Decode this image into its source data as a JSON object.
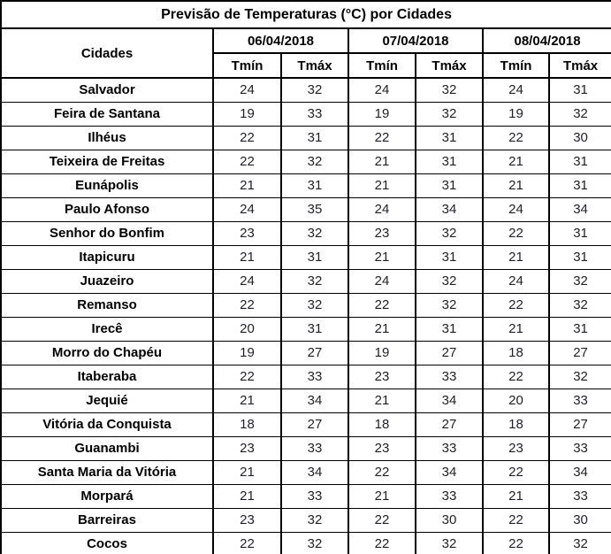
{
  "colors": {
    "border": "#000000",
    "header_text": "#000000",
    "value_text": "#1f1f28",
    "background": "#ffffff"
  },
  "chart_data": {
    "type": "table",
    "title": "Previsão de Temperaturas (°C) por Cidades",
    "row_header": "Cidades",
    "column_groups": [
      "06/04/2018",
      "07/04/2018",
      "08/04/2018"
    ],
    "sub_columns": [
      "Tmín",
      "Tmáx"
    ],
    "rows": [
      {
        "city": "Salvador",
        "temps": [
          24,
          32,
          24,
          32,
          24,
          31
        ]
      },
      {
        "city": "Feira de Santana",
        "temps": [
          19,
          33,
          19,
          32,
          19,
          32
        ]
      },
      {
        "city": "Ilhéus",
        "temps": [
          22,
          31,
          22,
          31,
          22,
          30
        ]
      },
      {
        "city": "Teixeira de Freitas",
        "temps": [
          22,
          32,
          21,
          31,
          21,
          31
        ]
      },
      {
        "city": "Eunápolis",
        "temps": [
          21,
          31,
          21,
          31,
          21,
          31
        ]
      },
      {
        "city": "Paulo Afonso",
        "temps": [
          24,
          35,
          24,
          34,
          24,
          34
        ]
      },
      {
        "city": "Senhor do Bonfim",
        "temps": [
          23,
          32,
          23,
          32,
          22,
          31
        ]
      },
      {
        "city": "Itapicuru",
        "temps": [
          21,
          31,
          21,
          31,
          21,
          31
        ]
      },
      {
        "city": "Juazeiro",
        "temps": [
          24,
          32,
          24,
          32,
          24,
          32
        ]
      },
      {
        "city": "Remanso",
        "temps": [
          22,
          32,
          22,
          32,
          22,
          32
        ]
      },
      {
        "city": "Irecê",
        "temps": [
          20,
          31,
          21,
          31,
          21,
          31
        ]
      },
      {
        "city": "Morro do Chapéu",
        "temps": [
          19,
          27,
          19,
          27,
          18,
          27
        ]
      },
      {
        "city": "Itaberaba",
        "temps": [
          22,
          33,
          23,
          33,
          22,
          32
        ]
      },
      {
        "city": "Jequié",
        "temps": [
          21,
          34,
          21,
          34,
          20,
          33
        ]
      },
      {
        "city": "Vitória da Conquista",
        "temps": [
          18,
          27,
          18,
          27,
          18,
          27
        ]
      },
      {
        "city": "Guanambi",
        "temps": [
          23,
          33,
          23,
          33,
          23,
          33
        ]
      },
      {
        "city": "Santa Maria da Vitória",
        "temps": [
          21,
          34,
          22,
          34,
          22,
          34
        ]
      },
      {
        "city": "Morpará",
        "temps": [
          21,
          33,
          21,
          33,
          21,
          33
        ]
      },
      {
        "city": "Barreiras",
        "temps": [
          23,
          32,
          22,
          30,
          22,
          30
        ]
      },
      {
        "city": "Cocos",
        "temps": [
          22,
          32,
          22,
          32,
          22,
          32
        ]
      }
    ]
  }
}
